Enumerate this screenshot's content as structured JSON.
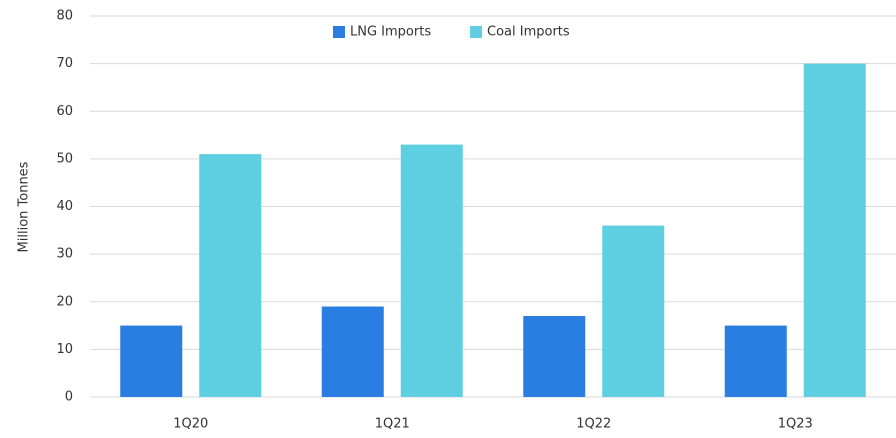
{
  "chart_data": {
    "type": "bar",
    "y_label": "Million Tonnes",
    "categories": [
      "1Q20",
      "1Q21",
      "1Q22",
      "1Q23"
    ],
    "series": [
      {
        "name": "LNG Imports",
        "color": "#2a7de1",
        "values": [
          15,
          19,
          17,
          15
        ]
      },
      {
        "name": "Coal Imports",
        "color": "#5ecfe0",
        "values": [
          51,
          53,
          36,
          70
        ]
      }
    ],
    "ylim": [
      0,
      80
    ],
    "yticks": [
      0,
      10,
      20,
      30,
      40,
      50,
      60,
      70,
      80
    ],
    "grid": true,
    "legend": "top"
  }
}
